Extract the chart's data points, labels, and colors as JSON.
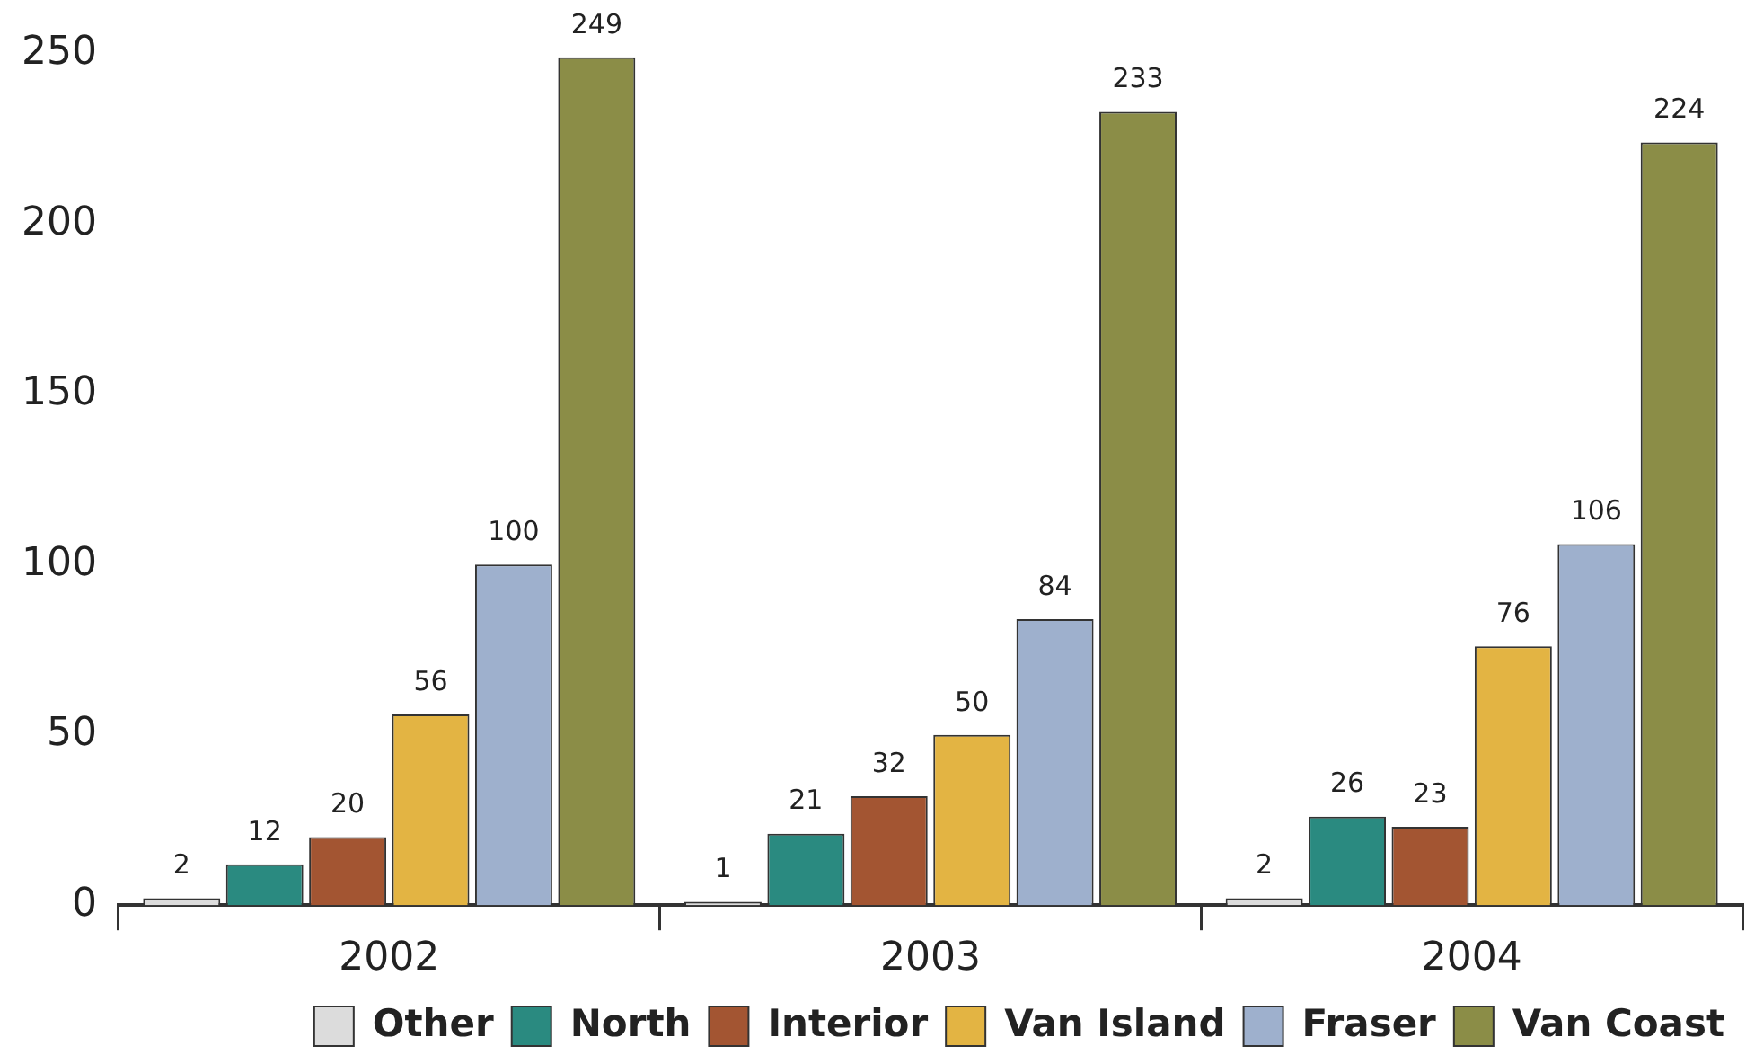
{
  "chart_data": {
    "type": "bar",
    "categories": [
      "2002",
      "2003",
      "2004"
    ],
    "series": [
      {
        "name": "Other",
        "color": "#dcdcdc",
        "values": [
          2,
          1,
          2
        ]
      },
      {
        "name": "North",
        "color": "#2a8a80",
        "values": [
          12,
          21,
          26
        ]
      },
      {
        "name": "Interior",
        "color": "#a35532",
        "values": [
          20,
          32,
          23
        ]
      },
      {
        "name": "Van Island",
        "color": "#e3b443",
        "values": [
          56,
          50,
          76
        ]
      },
      {
        "name": "Fraser",
        "color": "#9eb0cd",
        "values": [
          100,
          84,
          106
        ]
      },
      {
        "name": "Van Coast",
        "color": "#8b8d47",
        "values": [
          249,
          233,
          224
        ]
      }
    ],
    "ylim": [
      0,
      250
    ],
    "yticks": [
      0,
      50,
      100,
      150,
      200,
      250
    ],
    "grid": false,
    "legend": "bottom",
    "data_labels": true
  }
}
